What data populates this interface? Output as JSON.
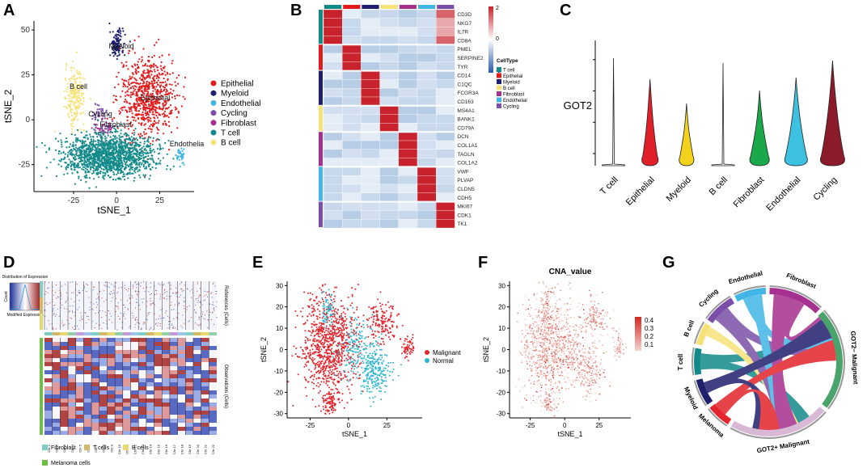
{
  "panel_labels": {
    "a": "A",
    "b": "B",
    "c": "C",
    "d": "D",
    "e": "E",
    "f": "F",
    "g": "G"
  },
  "palette": {
    "epithelial": "#e31a1c",
    "myeloid": "#1f1f6e",
    "endothelial": "#41b6e6",
    "cycling": "#7b4fa8",
    "fibroblast": "#a6308f",
    "tcell": "#138a8a",
    "bcell": "#f7e27a",
    "malignant": "#e3242b",
    "normal": "#2bb5cf",
    "cycling_dark": "#8b1a2b",
    "fibro_green": "#1aa84a",
    "melanoma_green": "#6dbf45"
  },
  "chart_data": [
    {
      "id": "A",
      "type": "scatter",
      "xlabel": "tSNE_1",
      "ylabel": "tSNE_2",
      "xticks": [
        "-25",
        "0",
        "25"
      ],
      "yticks": [
        "50",
        "25",
        "0",
        "-25"
      ],
      "xlim": [
        -48,
        45
      ],
      "ylim": [
        -40,
        55
      ],
      "legend": [
        "Epithelial",
        "Myeloid",
        "Endothelial",
        "Cycling",
        "Fibroblast",
        "T cell",
        "B cell"
      ],
      "cluster_labels": [
        "Myeloid",
        "B cell",
        "Epithelial",
        "Cycling",
        "Fibroblast",
        "Endothelia"
      ],
      "clusters": [
        {
          "name": "Myeloid",
          "cx": 0,
          "cy": 42,
          "sx": 2,
          "sy": 4,
          "n": 130
        },
        {
          "name": "B cell",
          "cx": -24,
          "cy": 13,
          "sx": 2.8,
          "sy": 8,
          "n": 220
        },
        {
          "name": "Epithelial",
          "cx": 18,
          "cy": 13,
          "sx": 8,
          "sy": 11,
          "n": 750
        },
        {
          "name": "Cycling",
          "cx": -11,
          "cy": 3,
          "sx": 2.5,
          "sy": 3,
          "n": 40
        },
        {
          "name": "Fibroblast",
          "cx": -7,
          "cy": -5,
          "sx": 3,
          "sy": 2.5,
          "n": 60
        },
        {
          "name": "T cell",
          "cx": -5,
          "cy": -20,
          "sx": 13,
          "sy": 6,
          "n": 1500
        },
        {
          "name": "Endothelia",
          "cx": 37,
          "cy": -20,
          "sx": 1.5,
          "sy": 2,
          "n": 40
        }
      ]
    },
    {
      "id": "B",
      "type": "heatmap",
      "genes": [
        "CD3D",
        "NKG7",
        "IL7R",
        "CD8A",
        "PMEL",
        "SERPINE2",
        "TYR",
        "CD14",
        "C1QC",
        "FCGR3A",
        "CD163",
        "MS4A1",
        "BANK1",
        "CD79A",
        "DCN",
        "COL1A1",
        "TAGLN",
        "COL1A2",
        "VWF",
        "PLVAP",
        "CLDN5",
        "CDH5",
        "MKI67",
        "CDK1",
        "TK1"
      ],
      "columns": [
        "T cell",
        "Epithelial",
        "Myeloid",
        "B cell",
        "Fibroblast",
        "Endothelial",
        "Cycling"
      ],
      "scale": [
        "2",
        "0",
        "-2"
      ],
      "legend_title": "CellType",
      "legend": [
        "T cell",
        "Epithelial",
        "Myeloid",
        "B cell",
        "Fibroblast",
        "Endothelial",
        "Cycling"
      ]
    },
    {
      "id": "C",
      "type": "violin",
      "ylabel": "GOT2",
      "categories": [
        "T cell",
        "Epithelial",
        "Myeloid",
        "B cell",
        "Fibroblast",
        "Endothelial",
        "Cycling"
      ]
    },
    {
      "id": "D",
      "type": "heatmap",
      "key_title": "Distribution of Expression",
      "key_xlabel": "Modified Expression",
      "key_ylabel": "Count",
      "references_label": "References (Cells)",
      "observations_label": "Observations (Cells)",
      "chromosomes": [
        "Chr 1",
        "Chr 2",
        "Chr 3",
        "Chr 4",
        "Chr 5",
        "Chr 6",
        "Chr 7",
        "Chr 8",
        "Chr 9",
        "Chr 10",
        "Chr 11",
        "Chr 12",
        "Chr 13",
        "Chr 14",
        "Chr 15",
        "Chr 16",
        "Chr 17",
        "Chr 18",
        "Chr 19",
        "Chr 20",
        "Chr 21",
        "Chr 22"
      ],
      "legend": [
        "Fibroblast",
        "T cells",
        "B cells",
        "Melanoma cells"
      ]
    },
    {
      "id": "E",
      "type": "scatter",
      "xlabel": "tSNE_1",
      "ylabel": "tSNE_2",
      "xticks": [
        "-25",
        "0",
        "25"
      ],
      "yticks": [
        "30",
        "20",
        "10",
        "0",
        "-10",
        "-20",
        "-30"
      ],
      "xlim": [
        -40,
        48
      ],
      "ylim": [
        -32,
        32
      ],
      "legend": [
        "Malignant",
        "Normal"
      ]
    },
    {
      "id": "F",
      "type": "scatter",
      "title": "CNA_value",
      "xlabel": "tSNE_1",
      "ylabel": "tSNE_2",
      "xticks": [
        "-25",
        "0",
        "25"
      ],
      "yticks": [
        "30",
        "20",
        "10",
        "0",
        "-10",
        "-20",
        "-30"
      ],
      "xlim": [
        -40,
        48
      ],
      "ylim": [
        -32,
        32
      ],
      "colorbar": [
        "0.4",
        "0.3",
        "0.2",
        "0.1"
      ]
    },
    {
      "id": "G",
      "type": "chord",
      "sectors": [
        "T cell",
        "B cell",
        "Cycling",
        "Endothelial",
        "Fibroblast",
        "GOT2− Malignant",
        "GOT2+ Malignant",
        "Melanoma",
        "Myeloid"
      ]
    }
  ]
}
